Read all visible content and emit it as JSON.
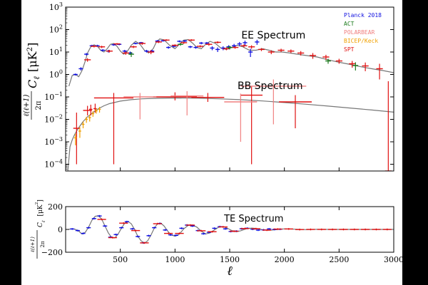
{
  "chart_data": [
    {
      "type": "line",
      "panel": "top",
      "ylabel_prefix": "ℓ(ℓ+1)",
      "ylabel_denom": "2π",
      "ylabel_sym": "C",
      "ylabel_sub": "ℓ",
      "ylabel_unit": "[μK",
      "ylabel_unit_sup": "2",
      "ylabel_unit_close": "]",
      "yscale": "log",
      "xlim": [
        0,
        3000
      ],
      "ylim": [
        5e-05,
        1000
      ],
      "yticks": [
        {
          "v": 1000,
          "base": "10",
          "exp": "3"
        },
        {
          "v": 100,
          "base": "10",
          "exp": "2"
        },
        {
          "v": 10,
          "base": "10",
          "exp": "1"
        },
        {
          "v": 1,
          "base": "10",
          "exp": "0"
        },
        {
          "v": 0.1,
          "base": "10",
          "exp": "−1"
        },
        {
          "v": 0.01,
          "base": "10",
          "exp": "−2"
        },
        {
          "v": 0.001,
          "base": "10",
          "exp": "−3"
        },
        {
          "v": 0.0001,
          "base": "10",
          "exp": "−4"
        }
      ],
      "annotations": [
        {
          "key": "ee",
          "text": "EE Spectrum",
          "x": 1900,
          "y": 40
        },
        {
          "key": "bb",
          "text": "BB Spectrum",
          "x": 1870,
          "y": 0.22
        }
      ],
      "legend": {
        "placement": "top-right",
        "entries": [
          {
            "name": "Planck 2018",
            "color": "#1010e0"
          },
          {
            "name": "ACT",
            "color": "#1a7a1a"
          },
          {
            "name": "POLARBEAR",
            "color": "#f08080"
          },
          {
            "name": "BICEP/Keck",
            "color": "#f0a000"
          },
          {
            "name": "SPT",
            "color": "#e01010"
          }
        ]
      },
      "series": [
        {
          "key": "ee_model",
          "color": "#777777",
          "x": [
            30,
            60,
            90,
            120,
            150,
            180,
            200,
            230,
            260,
            290,
            320,
            350,
            380,
            410,
            440,
            470,
            500,
            530,
            560,
            600,
            640,
            680,
            720,
            760,
            800,
            830,
            860,
            900,
            950,
            1000,
            1040,
            1080,
            1120,
            1160,
            1200,
            1240,
            1280,
            1320,
            1370,
            1420,
            1470,
            1520,
            1570,
            1620,
            1680,
            1740,
            1800,
            1860,
            1920,
            1980,
            2050,
            2120,
            2200,
            2300,
            2400,
            2500,
            2600,
            2700,
            2800,
            2900,
            3000
          ],
          "y": [
            0.3,
            0.9,
            1.0,
            0.8,
            1.5,
            4.0,
            9.0,
            17,
            21,
            18,
            12,
            10,
            14,
            22,
            24,
            18,
            11,
            8,
            10,
            20,
            30,
            22,
            12,
            9,
            14,
            28,
            38,
            35,
            20,
            14,
            22,
            34,
            36,
            25,
            16,
            14,
            22,
            30,
            24,
            15,
            13,
            16,
            20,
            17,
            12,
            12,
            14,
            12,
            10,
            10,
            9,
            8,
            7,
            6,
            4.5,
            3.5,
            2.8,
            2.2,
            1.8,
            1.5,
            1.2
          ]
        },
        {
          "key": "bb_model",
          "color": "#777777",
          "x": [
            20,
            40,
            60,
            80,
            100,
            130,
            160,
            200,
            250,
            300,
            350,
            400,
            500,
            600,
            700,
            800,
            1000,
            1200,
            1400,
            1600,
            1800,
            2000,
            2200,
            2400,
            2600,
            2800,
            3000
          ],
          "y": [
            5e-05,
            0.0006,
            0.0012,
            0.002,
            0.003,
            0.005,
            0.008,
            0.013,
            0.02,
            0.03,
            0.04,
            0.05,
            0.065,
            0.075,
            0.082,
            0.086,
            0.09,
            0.088,
            0.082,
            0.075,
            0.066,
            0.056,
            0.047,
            0.039,
            0.032,
            0.026,
            0.021
          ]
        },
        {
          "key": "planck_ee",
          "name": "Planck 2018",
          "color": "#1010e0",
          "x": [
            90,
            140,
            190,
            240,
            290,
            340,
            390,
            440,
            490,
            540,
            590,
            640,
            690,
            740,
            790,
            840,
            890,
            940,
            990,
            1040,
            1090,
            1140,
            1190,
            1240,
            1290,
            1340,
            1390,
            1440,
            1490,
            1540,
            1590,
            1640,
            1690,
            1750
          ],
          "y": [
            1.0,
            1.8,
            8.0,
            19,
            19,
            12,
            11,
            21,
            22,
            11,
            9,
            24,
            26,
            11,
            11,
            31,
            32,
            16,
            18,
            30,
            31,
            17,
            16,
            25,
            25,
            15,
            13,
            15,
            17,
            19,
            23,
            26,
            10,
            28
          ],
          "yerr": [
            0.1,
            0.3,
            1,
            2,
            2,
            1.5,
            1.5,
            2,
            2,
            1.5,
            1.5,
            2,
            2,
            1.5,
            1.5,
            3,
            3,
            2,
            2,
            3,
            3,
            2,
            2,
            3,
            3,
            3,
            3,
            3,
            3,
            4,
            5,
            6,
            4,
            7
          ],
          "xerr": 20
        },
        {
          "key": "spt_ee",
          "name": "SPT",
          "color": "#e01010",
          "x": [
            200,
            260,
            330,
            400,
            470,
            550,
            620,
            700,
            780,
            850,
            920,
            1000,
            1080,
            1150,
            1230,
            1310,
            1390,
            1470,
            1550,
            1630,
            1700,
            1790,
            1880,
            1970,
            2060,
            2150,
            2260,
            2380,
            2500,
            2620,
            2740,
            2870
          ],
          "y": [
            4.5,
            18,
            17,
            11,
            23,
            9,
            17,
            24,
            10,
            28,
            34,
            20,
            26,
            34,
            18,
            22,
            27,
            14,
            16,
            19,
            17,
            13,
            10,
            12,
            11,
            9,
            7,
            6,
            4,
            3,
            2.4,
            1.8
          ],
          "yerr": [
            0.8,
            2,
            2,
            1.5,
            2,
            1.5,
            2,
            3,
            2,
            3,
            3,
            2,
            3,
            3,
            2,
            3,
            3,
            2,
            2,
            3,
            3,
            2,
            2,
            2,
            2,
            2,
            2,
            1.5,
            1,
            1,
            1,
            1.2
          ],
          "xerr": 30
        },
        {
          "key": "act_ee",
          "name": "ACT",
          "color": "#1a7a1a",
          "x": [
            600,
            1050,
            1500,
            2400,
            2650
          ],
          "y": [
            8,
            22,
            16,
            4,
            2.5
          ],
          "yerr": [
            2,
            3,
            3,
            1,
            1
          ],
          "xerr": 25
        },
        {
          "key": "spt_bb",
          "name": "SPT",
          "color": "#e01010",
          "x": [
            100,
            200,
            230,
            270,
            440,
            1000,
            1300,
            1700,
            2100,
            2950
          ],
          "y": [
            0.004,
            0.025,
            0.028,
            0.03,
            0.09,
            0.1,
            0.095,
            0.12,
            0.06,
            5e-05
          ],
          "ylo": [
            0.0001,
            0.015,
            0.015,
            0.02,
            0.0001,
            0.07,
            0.06,
            0.0001,
            0.004,
            5e-05
          ],
          "yhi": [
            0.02,
            0.04,
            0.045,
            0.05,
            0.15,
            0.16,
            0.15,
            0.3,
            0.12,
            0.5
          ],
          "xerr": [
            30,
            40,
            15,
            15,
            180,
            200,
            150,
            100,
            150,
            30
          ]
        },
        {
          "key": "polarbear_bb",
          "name": "POLARBEAR",
          "color": "#f08080",
          "x": [
            680,
            1110,
            1600,
            1900
          ],
          "y": [
            0.1,
            0.11,
            0.06,
            0.3
          ],
          "ylo": [
            0.01,
            0.015,
            0.001,
            0.006
          ],
          "yhi": [
            0.15,
            0.18,
            0.14,
            0.6
          ],
          "xerr": [
            150,
            150,
            150,
            300
          ]
        },
        {
          "key": "bicep_bb",
          "name": "BICEP/Keck",
          "color": "#f0a000",
          "x": [
            90,
            130,
            160,
            190,
            220,
            250,
            280,
            310
          ],
          "y": [
            0.0015,
            0.003,
            0.006,
            0.01,
            0.012,
            0.018,
            0.024,
            0.028
          ],
          "yerr": [
            0.0008,
            0.0015,
            0.002,
            0.003,
            0.004,
            0.005,
            0.006,
            0.008
          ],
          "xerr": 12
        }
      ]
    },
    {
      "type": "line",
      "panel": "bottom",
      "xlabel": "ℓ",
      "ylabel_prefix": "ℓ(ℓ+1)",
      "ylabel_denom": "2π",
      "ylabel_sym": "C",
      "ylabel_sub": "ℓ",
      "ylabel_unit": "[μK",
      "ylabel_unit_sup": "2",
      "ylabel_unit_close": "]",
      "xlim": [
        0,
        3000
      ],
      "ylim": [
        -200,
        200
      ],
      "xticks": [
        "500",
        "1000",
        "1500",
        "2000",
        "2500",
        "3000"
      ],
      "xtick_values": [
        500,
        1000,
        1500,
        2000,
        2500,
        3000
      ],
      "yticks": [
        "200",
        "0",
        "−200"
      ],
      "ytick_values": [
        200,
        0,
        -200
      ],
      "annotations": [
        {
          "key": "te",
          "text": "TE Spectrum",
          "x": 1720,
          "y": 70
        }
      ],
      "series": [
        {
          "key": "te_model",
          "color": "#777777",
          "x": [
            30,
            60,
            90,
            120,
            150,
            180,
            210,
            240,
            270,
            300,
            330,
            360,
            390,
            420,
            450,
            480,
            510,
            540,
            570,
            600,
            630,
            660,
            690,
            720,
            750,
            780,
            810,
            840,
            870,
            900,
            930,
            960,
            1000,
            1040,
            1080,
            1120,
            1160,
            1200,
            1240,
            1280,
            1320,
            1360,
            1400,
            1440,
            1480,
            1520,
            1560,
            1600,
            1650,
            1700,
            1750,
            1800,
            1850,
            1900,
            2000,
            2100,
            2200,
            2300,
            2400,
            2600,
            2800,
            3000
          ],
          "y": [
            2,
            5,
            0,
            -15,
            -40,
            -25,
            20,
            80,
            115,
            120,
            90,
            30,
            -30,
            -70,
            -75,
            -40,
            10,
            55,
            70,
            50,
            0,
            -60,
            -100,
            -120,
            -100,
            -50,
            10,
            50,
            55,
            30,
            -10,
            -45,
            -60,
            -40,
            5,
            35,
            40,
            20,
            -15,
            -40,
            -30,
            -5,
            20,
            25,
            10,
            -10,
            -20,
            -12,
            5,
            12,
            8,
            -3,
            -8,
            -4,
            5,
            2,
            -2,
            1,
            0,
            0,
            0,
            0
          ]
        },
        {
          "key": "planck_te",
          "name": "Planck 2018",
          "color": "#1010e0",
          "x": [
            60,
            110,
            160,
            210,
            260,
            310,
            360,
            410,
            460,
            510,
            560,
            610,
            660,
            710,
            760,
            810,
            860,
            910,
            960,
            1010,
            1060,
            1110,
            1160,
            1210,
            1260,
            1310,
            1360,
            1410,
            1460,
            1510,
            1560,
            1610,
            1660,
            1710,
            1760,
            1810,
            1860,
            1910,
            1960
          ],
          "y": [
            4,
            -10,
            -35,
            15,
            95,
            118,
            30,
            -68,
            -45,
            15,
            68,
            5,
            -62,
            -118,
            -55,
            15,
            52,
            -5,
            -48,
            -52,
            10,
            38,
            30,
            -10,
            -38,
            -25,
            10,
            24,
            5,
            -18,
            -15,
            6,
            10,
            2,
            -6,
            -4,
            4,
            0,
            2
          ],
          "xerr": 20
        },
        {
          "key": "spt_te",
          "name": "SPT",
          "color": "#e01010",
          "x": [
            330,
            430,
            530,
            640,
            720,
            840,
            940,
            1040,
            1140,
            1240,
            1340,
            1440,
            1540,
            1640,
            1740,
            1840,
            1940,
            2040,
            2140,
            2240,
            2340,
            2440,
            2540,
            2640,
            2740,
            2840,
            2940
          ],
          "y": [
            88,
            -72,
            55,
            -10,
            -118,
            50,
            -35,
            -35,
            38,
            -12,
            -20,
            22,
            -16,
            8,
            6,
            -6,
            3,
            4,
            -1,
            0,
            0,
            0,
            0,
            0,
            0,
            0,
            0
          ],
          "xerr": 40
        }
      ]
    }
  ]
}
